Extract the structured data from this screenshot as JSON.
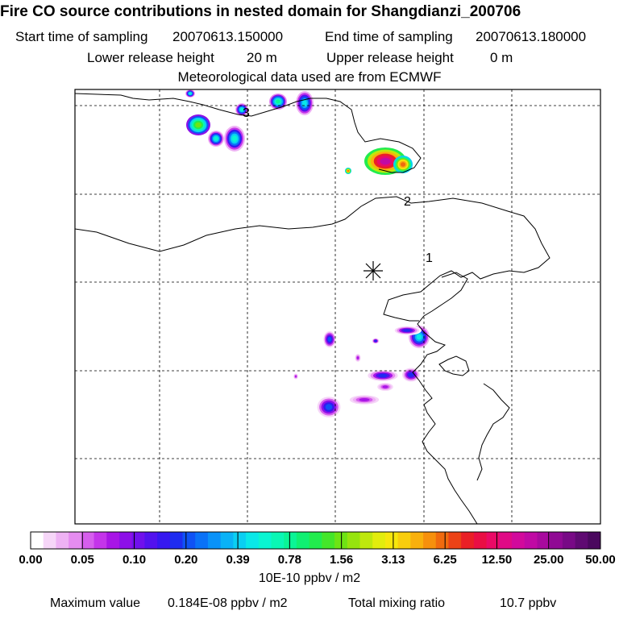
{
  "header": {
    "title": "Fire CO source contributions in nested domain for Shangdianzi_200706",
    "start_label": "Start time of sampling",
    "start_value": "20070613.150000",
    "end_label": "End time of sampling",
    "end_value": "20070613.180000",
    "lower_label": "Lower release height",
    "lower_value": "20 m",
    "upper_label": "Upper release height",
    "upper_value": "0 m",
    "met_line": "Meteorological data used are from ECMWF"
  },
  "chart_data": {
    "type": "heatmap",
    "title": "Fire CO source contributions in nested domain for Shangdianzi_200706",
    "xlabel": "",
    "ylabel": "",
    "grid": true,
    "receptor": {
      "symbol": "asterisk",
      "name": "Shangdianzi"
    },
    "trajectory_labels": [
      "1",
      "2",
      "3"
    ],
    "colorbar": {
      "unit": "10E-10 ppbv / m2",
      "tick_labels": [
        "0.00",
        "0.05",
        "0.10",
        "0.20",
        "0.39",
        "0.78",
        "1.56",
        "3.13",
        "6.25",
        "12.50",
        "25.00",
        "50.00"
      ],
      "colors": [
        "#ffffff",
        "#f6d6f8",
        "#eeb2f4",
        "#e58cf0",
        "#d65eed",
        "#c434ea",
        "#a815e6",
        "#8d10e8",
        "#7010ec",
        "#5212ee",
        "#3618f0",
        "#1e2cf0",
        "#0f52f5",
        "#0a72f7",
        "#0a92f8",
        "#0ab2f7",
        "#0acff2",
        "#0ae8e8",
        "#0af5d2",
        "#0af7b5",
        "#0af596",
        "#10f072",
        "#22ec4d",
        "#44e62a",
        "#6ee414",
        "#96e40e",
        "#bee80c",
        "#e2ec0c",
        "#f6e60c",
        "#f8cd0c",
        "#f8b00c",
        "#f6900c",
        "#f06a0e",
        "#ec4216",
        "#ea1f26",
        "#ea0e44",
        "#ea0a66",
        "#e00a86",
        "#d20a9c",
        "#c00aa4",
        "#a80a9e",
        "#900a94",
        "#780a86",
        "#5f0a72",
        "#4a085e"
      ]
    },
    "plumes": [
      {
        "region": "top-left cluster",
        "peak": 1.6
      },
      {
        "region": "top-center small spot",
        "peak": 0.8
      },
      {
        "region": "top-center spot",
        "peak": 0.5
      },
      {
        "region": "northeast hotspot",
        "peak": 18.4
      },
      {
        "region": "southeast coastal spot",
        "peak": 0.5
      },
      {
        "region": "south-central spot",
        "peak": 0.2
      },
      {
        "region": "south spot",
        "peak": 0.2
      }
    ],
    "max_label": "Maximum value",
    "max_value": "0.184E-08 ppbv / m2",
    "total_label": "Total mixing ratio",
    "total_value": "10.7 ppbv"
  }
}
